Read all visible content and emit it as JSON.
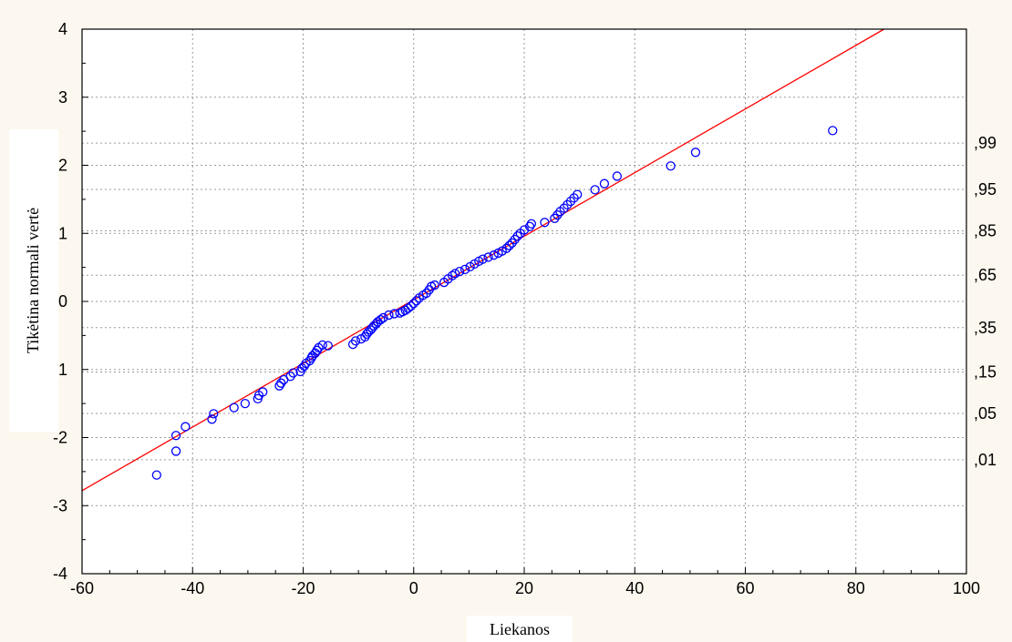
{
  "chart_data": {
    "type": "scatter",
    "xlabel": "Liekanos",
    "ylabel": "Tikėtina normali vertė",
    "xlim": [
      -60,
      100
    ],
    "ylim": [
      -4,
      4
    ],
    "x_ticks": [
      "-60",
      "-40",
      "-20",
      "0",
      "20",
      "40",
      "60",
      "80",
      "100"
    ],
    "y_ticks": [
      "-4",
      "-3",
      "-2",
      "-1",
      "0",
      "1",
      "2",
      "3",
      "4"
    ],
    "right_axis": {
      "labels": [
        ",01",
        ",05",
        ",15",
        ",35",
        ",65",
        ",85",
        ",95",
        ",99"
      ],
      "z_values": [
        -2.326,
        -1.645,
        -1.036,
        -0.385,
        0.385,
        1.036,
        1.645,
        2.326
      ]
    },
    "fit_line": {
      "color": "#ff0000",
      "points": [
        [
          -60,
          -2.78
        ],
        [
          85.1,
          4.0
        ]
      ]
    },
    "grid": true,
    "marker_color": "#0000ff",
    "series": [
      {
        "points": [
          [
            -46.5,
            -2.55
          ],
          [
            -43,
            -2.2
          ],
          [
            -43,
            -1.97
          ],
          [
            -41.3,
            -1.84
          ],
          [
            -36.5,
            -1.73
          ],
          [
            -36.2,
            -1.65
          ],
          [
            -32.5,
            -1.56
          ],
          [
            -30.5,
            -1.5
          ],
          [
            -28.2,
            -1.43
          ],
          [
            -28,
            -1.38
          ],
          [
            -27.3,
            -1.33
          ],
          [
            -24.3,
            -1.24
          ],
          [
            -24,
            -1.2
          ],
          [
            -23.5,
            -1.15
          ],
          [
            -22.3,
            -1.1
          ],
          [
            -21.8,
            -1.05
          ],
          [
            -20.5,
            -1.03
          ],
          [
            -20.2,
            -0.98
          ],
          [
            -19.8,
            -0.95
          ],
          [
            -19.5,
            -0.91
          ],
          [
            -18.8,
            -0.87
          ],
          [
            -18.5,
            -0.83
          ],
          [
            -18.3,
            -0.8
          ],
          [
            -17.8,
            -0.76
          ],
          [
            -17.5,
            -0.72
          ],
          [
            -17.2,
            -0.68
          ],
          [
            -16.5,
            -0.64
          ],
          [
            -15.5,
            -0.65
          ],
          [
            -11,
            -0.63
          ],
          [
            -10.5,
            -0.58
          ],
          [
            -9.5,
            -0.55
          ],
          [
            -8.8,
            -0.52
          ],
          [
            -8.5,
            -0.48
          ],
          [
            -8.2,
            -0.45
          ],
          [
            -7.8,
            -0.42
          ],
          [
            -7.5,
            -0.39
          ],
          [
            -7.2,
            -0.36
          ],
          [
            -6.8,
            -0.33
          ],
          [
            -6.5,
            -0.3
          ],
          [
            -6,
            -0.27
          ],
          [
            -5.5,
            -0.24
          ],
          [
            -4.5,
            -0.2
          ],
          [
            -3.5,
            -0.18
          ],
          [
            -2.5,
            -0.17
          ],
          [
            -2,
            -0.15
          ],
          [
            -1.5,
            -0.13
          ],
          [
            -1,
            -0.1
          ],
          [
            -0.5,
            -0.07
          ],
          [
            0,
            -0.03
          ],
          [
            0.5,
            0.01
          ],
          [
            1,
            0.05
          ],
          [
            1.7,
            0.09
          ],
          [
            2.3,
            0.12
          ],
          [
            2.8,
            0.17
          ],
          [
            3.2,
            0.22
          ],
          [
            3.8,
            0.24
          ],
          [
            5.5,
            0.28
          ],
          [
            6.2,
            0.33
          ],
          [
            7,
            0.38
          ],
          [
            7.5,
            0.41
          ],
          [
            8.3,
            0.44
          ],
          [
            9.3,
            0.47
          ],
          [
            10.2,
            0.51
          ],
          [
            11,
            0.55
          ],
          [
            11.8,
            0.59
          ],
          [
            12.5,
            0.62
          ],
          [
            13.5,
            0.65
          ],
          [
            14.5,
            0.68
          ],
          [
            15.3,
            0.71
          ],
          [
            16,
            0.74
          ],
          [
            16.8,
            0.78
          ],
          [
            17.3,
            0.82
          ],
          [
            17.8,
            0.86
          ],
          [
            18.3,
            0.91
          ],
          [
            18.8,
            0.96
          ],
          [
            19.3,
            1.0
          ],
          [
            20,
            1.05
          ],
          [
            21,
            1.1
          ],
          [
            21.3,
            1.14
          ],
          [
            23.7,
            1.16
          ],
          [
            25.5,
            1.22
          ],
          [
            26,
            1.27
          ],
          [
            26.5,
            1.32
          ],
          [
            27.2,
            1.37
          ],
          [
            27.8,
            1.42
          ],
          [
            28.4,
            1.47
          ],
          [
            29,
            1.52
          ],
          [
            29.6,
            1.57
          ],
          [
            32.8,
            1.64
          ],
          [
            34.5,
            1.73
          ],
          [
            36.8,
            1.84
          ],
          [
            46.5,
            1.99
          ],
          [
            51,
            2.19
          ],
          [
            75.8,
            2.51
          ]
        ]
      }
    ]
  }
}
